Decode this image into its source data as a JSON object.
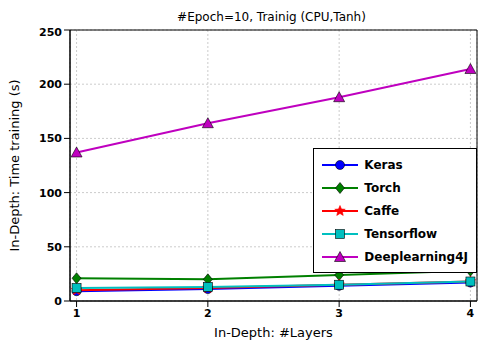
{
  "chart_data": {
    "type": "line",
    "title": "#Epoch=10, Trainig (CPU,Tanh)",
    "x_label": "In-Depth: #Layers",
    "y_label": "In-Depth: Time training (s)",
    "x": [
      1,
      2,
      3,
      4
    ],
    "xlim": [
      0.95,
      4.05
    ],
    "xticks": [
      1,
      2,
      3,
      4
    ],
    "ylim": [
      0,
      250
    ],
    "yticks": [
      0,
      50,
      100,
      150,
      200,
      250
    ],
    "grid": true,
    "legend": "right",
    "series": [
      {
        "name": "Keras",
        "color": "#0000ff",
        "marker": "circle",
        "values": [
          9,
          11,
          14,
          17
        ]
      },
      {
        "name": "Torch",
        "color": "#008000",
        "marker": "diamond",
        "values": [
          21,
          20,
          24,
          28
        ]
      },
      {
        "name": "Caffe",
        "color": "#ff0000",
        "marker": "star",
        "values": [
          10,
          12,
          15,
          18
        ]
      },
      {
        "name": "Tensorflow",
        "color": "#00bfbf",
        "marker": "square",
        "values": [
          12,
          13,
          15,
          18
        ]
      },
      {
        "name": "Deeplearning4J",
        "color": "#bf00bf",
        "marker": "triangle",
        "values": [
          137,
          164,
          188,
          214
        ]
      }
    ]
  }
}
